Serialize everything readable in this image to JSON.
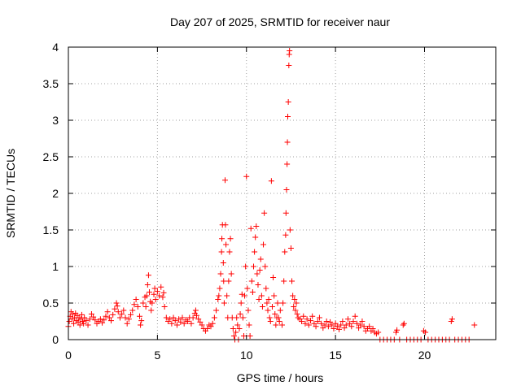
{
  "chart_data": {
    "type": "scatter",
    "title": "Day 207 of 2025, SRMTID for receiver naur",
    "xlabel": "GPS time / hours",
    "ylabel": "SRMTID / TECUs",
    "xlim": [
      0,
      24
    ],
    "ylim": [
      0,
      4
    ],
    "xticks": [
      0,
      5,
      10,
      15,
      20
    ],
    "xtick_labels": [
      "0",
      "5",
      "10",
      "15",
      "20"
    ],
    "yticks": [
      0,
      0.5,
      1,
      1.5,
      2,
      2.5,
      3,
      3.5,
      4
    ],
    "ytick_labels": [
      "0",
      "0.5",
      "1",
      "1.5",
      "2",
      "2.5",
      "3",
      "3.5",
      "4"
    ],
    "grid": true,
    "marker": "+",
    "color": "#ff0000",
    "series": [
      {
        "name": "SRMTID",
        "points": [
          [
            0.0,
            0.18
          ],
          [
            0.05,
            0.25
          ],
          [
            0.1,
            0.32
          ],
          [
            0.15,
            0.38
          ],
          [
            0.2,
            0.28
          ],
          [
            0.25,
            0.35
          ],
          [
            0.3,
            0.22
          ],
          [
            0.35,
            0.3
          ],
          [
            0.4,
            0.36
          ],
          [
            0.45,
            0.26
          ],
          [
            0.5,
            0.33
          ],
          [
            0.55,
            0.24
          ],
          [
            0.6,
            0.3
          ],
          [
            0.65,
            0.2
          ],
          [
            0.7,
            0.28
          ],
          [
            0.75,
            0.34
          ],
          [
            0.8,
            0.25
          ],
          [
            0.85,
            0.22
          ],
          [
            0.9,
            0.3
          ],
          [
            1.0,
            0.26
          ],
          [
            1.1,
            0.2
          ],
          [
            1.2,
            0.28
          ],
          [
            1.3,
            0.35
          ],
          [
            1.4,
            0.31
          ],
          [
            1.5,
            0.27
          ],
          [
            1.6,
            0.22
          ],
          [
            1.7,
            0.25
          ],
          [
            1.8,
            0.28
          ],
          [
            1.9,
            0.23
          ],
          [
            2.0,
            0.27
          ],
          [
            2.1,
            0.32
          ],
          [
            2.2,
            0.38
          ],
          [
            2.3,
            0.3
          ],
          [
            2.4,
            0.26
          ],
          [
            2.5,
            0.34
          ],
          [
            2.6,
            0.42
          ],
          [
            2.7,
            0.5
          ],
          [
            2.75,
            0.46
          ],
          [
            2.8,
            0.38
          ],
          [
            2.9,
            0.3
          ],
          [
            3.0,
            0.35
          ],
          [
            3.1,
            0.4
          ],
          [
            3.2,
            0.3
          ],
          [
            3.3,
            0.22
          ],
          [
            3.4,
            0.28
          ],
          [
            3.5,
            0.34
          ],
          [
            3.6,
            0.4
          ],
          [
            3.7,
            0.48
          ],
          [
            3.8,
            0.55
          ],
          [
            3.9,
            0.45
          ],
          [
            4.0,
            0.32
          ],
          [
            4.05,
            0.2
          ],
          [
            4.1,
            0.26
          ],
          [
            4.2,
            0.5
          ],
          [
            4.3,
            0.58
          ],
          [
            4.35,
            0.45
          ],
          [
            4.4,
            0.6
          ],
          [
            4.45,
            0.75
          ],
          [
            4.5,
            0.88
          ],
          [
            4.55,
            0.65
          ],
          [
            4.6,
            0.52
          ],
          [
            4.65,
            0.4
          ],
          [
            4.7,
            0.5
          ],
          [
            4.8,
            0.62
          ],
          [
            4.85,
            0.7
          ],
          [
            4.9,
            0.55
          ],
          [
            5.0,
            0.66
          ],
          [
            5.1,
            0.6
          ],
          [
            5.2,
            0.72
          ],
          [
            5.3,
            0.58
          ],
          [
            5.35,
            0.64
          ],
          [
            5.4,
            0.45
          ],
          [
            5.5,
            0.3
          ],
          [
            5.6,
            0.25
          ],
          [
            5.7,
            0.28
          ],
          [
            5.8,
            0.22
          ],
          [
            5.9,
            0.3
          ],
          [
            6.0,
            0.26
          ],
          [
            6.1,
            0.2
          ],
          [
            6.2,
            0.28
          ],
          [
            6.3,
            0.24
          ],
          [
            6.4,
            0.3
          ],
          [
            6.5,
            0.22
          ],
          [
            6.6,
            0.27
          ],
          [
            6.7,
            0.25
          ],
          [
            6.8,
            0.3
          ],
          [
            6.9,
            0.22
          ],
          [
            7.0,
            0.3
          ],
          [
            7.1,
            0.36
          ],
          [
            7.15,
            0.4
          ],
          [
            7.2,
            0.33
          ],
          [
            7.3,
            0.28
          ],
          [
            7.4,
            0.24
          ],
          [
            7.5,
            0.2
          ],
          [
            7.6,
            0.15
          ],
          [
            7.7,
            0.12
          ],
          [
            7.8,
            0.15
          ],
          [
            7.9,
            0.2
          ],
          [
            8.0,
            0.18
          ],
          [
            8.1,
            0.22
          ],
          [
            8.2,
            0.3
          ],
          [
            8.3,
            0.4
          ],
          [
            8.4,
            0.55
          ],
          [
            8.45,
            0.6
          ],
          [
            8.5,
            0.7
          ],
          [
            8.55,
            0.9
          ],
          [
            8.6,
            1.2
          ],
          [
            8.62,
            1.38
          ],
          [
            8.65,
            1.57
          ],
          [
            8.7,
            1.05
          ],
          [
            8.72,
            0.8
          ],
          [
            8.75,
            0.5
          ],
          [
            8.8,
            2.18
          ],
          [
            8.82,
            1.57
          ],
          [
            8.85,
            1.3
          ],
          [
            8.9,
            0.6
          ],
          [
            8.95,
            0.3
          ],
          [
            9.0,
            0.8
          ],
          [
            9.05,
            1.2
          ],
          [
            9.1,
            1.38
          ],
          [
            9.15,
            0.9
          ],
          [
            9.2,
            0.3
          ],
          [
            9.25,
            0.15
          ],
          [
            9.3,
            0.05
          ],
          [
            9.35,
            0.0
          ],
          [
            9.4,
            0.1
          ],
          [
            9.45,
            0.3
          ],
          [
            9.5,
            0.2
          ],
          [
            9.55,
            0.0
          ],
          [
            9.6,
            0.15
          ],
          [
            9.65,
            0.35
          ],
          [
            9.7,
            0.5
          ],
          [
            9.75,
            0.62
          ],
          [
            9.8,
            0.3
          ],
          [
            9.85,
            0.05
          ],
          [
            9.9,
            0.6
          ],
          [
            9.95,
            1.0
          ],
          [
            10.0,
            2.23
          ],
          [
            10.05,
            0.7
          ],
          [
            10.1,
            0.4
          ],
          [
            10.15,
            0.2
          ],
          [
            10.2,
            0.05
          ],
          [
            10.25,
            1.52
          ],
          [
            10.3,
            0.8
          ],
          [
            10.35,
            0.65
          ],
          [
            10.4,
            1.0
          ],
          [
            10.45,
            1.2
          ],
          [
            10.5,
            1.4
          ],
          [
            10.55,
            1.55
          ],
          [
            10.6,
            0.9
          ],
          [
            10.65,
            0.75
          ],
          [
            10.7,
            0.55
          ],
          [
            10.75,
            0.95
          ],
          [
            10.8,
            1.1
          ],
          [
            10.85,
            0.6
          ],
          [
            10.9,
            0.45
          ],
          [
            10.95,
            1.3
          ],
          [
            11.0,
            1.73
          ],
          [
            11.05,
            1.0
          ],
          [
            11.1,
            0.7
          ],
          [
            11.15,
            0.5
          ],
          [
            11.2,
            0.4
          ],
          [
            11.25,
            0.55
          ],
          [
            11.3,
            0.3
          ],
          [
            11.35,
            0.25
          ],
          [
            11.4,
            2.17
          ],
          [
            11.45,
            0.45
          ],
          [
            11.5,
            0.85
          ],
          [
            11.55,
            0.6
          ],
          [
            11.6,
            0.35
          ],
          [
            11.65,
            0.2
          ],
          [
            11.7,
            0.3
          ],
          [
            11.75,
            0.5
          ],
          [
            11.8,
            0.3
          ],
          [
            11.85,
            0.25
          ],
          [
            11.9,
            0.4
          ],
          [
            12.0,
            0.2
          ],
          [
            12.05,
            0.5
          ],
          [
            12.1,
            0.8
          ],
          [
            12.15,
            1.2
          ],
          [
            12.2,
            1.43
          ],
          [
            12.22,
            1.73
          ],
          [
            12.25,
            2.05
          ],
          [
            12.28,
            2.4
          ],
          [
            12.3,
            2.7
          ],
          [
            12.32,
            3.05
          ],
          [
            12.35,
            3.25
          ],
          [
            12.38,
            3.75
          ],
          [
            12.4,
            3.9
          ],
          [
            12.42,
            3.95
          ],
          [
            12.45,
            1.5
          ],
          [
            12.5,
            1.25
          ],
          [
            12.55,
            0.8
          ],
          [
            12.6,
            0.6
          ],
          [
            12.65,
            0.45
          ],
          [
            12.7,
            0.55
          ],
          [
            12.75,
            0.4
          ],
          [
            12.8,
            0.5
          ],
          [
            12.85,
            0.35
          ],
          [
            12.9,
            0.3
          ],
          [
            13.0,
            0.28
          ],
          [
            13.1,
            0.25
          ],
          [
            13.2,
            0.32
          ],
          [
            13.3,
            0.22
          ],
          [
            13.4,
            0.28
          ],
          [
            13.5,
            0.2
          ],
          [
            13.6,
            0.26
          ],
          [
            13.7,
            0.32
          ],
          [
            13.8,
            0.22
          ],
          [
            13.9,
            0.18
          ],
          [
            14.0,
            0.25
          ],
          [
            14.1,
            0.3
          ],
          [
            14.2,
            0.22
          ],
          [
            14.3,
            0.16
          ],
          [
            14.4,
            0.2
          ],
          [
            14.5,
            0.25
          ],
          [
            14.6,
            0.18
          ],
          [
            14.7,
            0.24
          ],
          [
            14.8,
            0.2
          ],
          [
            14.9,
            0.15
          ],
          [
            15.0,
            0.22
          ],
          [
            15.1,
            0.18
          ],
          [
            15.2,
            0.14
          ],
          [
            15.3,
            0.2
          ],
          [
            15.4,
            0.25
          ],
          [
            15.5,
            0.16
          ],
          [
            15.6,
            0.2
          ],
          [
            15.7,
            0.28
          ],
          [
            15.8,
            0.22
          ],
          [
            15.9,
            0.18
          ],
          [
            16.0,
            0.25
          ],
          [
            16.1,
            0.32
          ],
          [
            16.2,
            0.22
          ],
          [
            16.3,
            0.16
          ],
          [
            16.4,
            0.2
          ],
          [
            16.5,
            0.25
          ],
          [
            16.6,
            0.18
          ],
          [
            16.7,
            0.12
          ],
          [
            16.8,
            0.15
          ],
          [
            16.9,
            0.18
          ],
          [
            17.0,
            0.12
          ],
          [
            17.1,
            0.15
          ],
          [
            17.2,
            0.1
          ],
          [
            17.3,
            0.08
          ],
          [
            17.4,
            0.1
          ],
          [
            17.5,
            0.0
          ],
          [
            17.7,
            0.0
          ],
          [
            17.9,
            0.0
          ],
          [
            18.1,
            0.0
          ],
          [
            18.3,
            0.0
          ],
          [
            18.4,
            0.1
          ],
          [
            18.45,
            0.13
          ],
          [
            18.6,
            0.0
          ],
          [
            18.8,
            0.2
          ],
          [
            18.85,
            0.22
          ],
          [
            19.0,
            0.0
          ],
          [
            19.2,
            0.0
          ],
          [
            19.4,
            0.0
          ],
          [
            19.6,
            0.0
          ],
          [
            19.8,
            0.0
          ],
          [
            19.95,
            0.12
          ],
          [
            20.05,
            0.1
          ],
          [
            20.2,
            0.0
          ],
          [
            20.4,
            0.0
          ],
          [
            20.6,
            0.0
          ],
          [
            20.8,
            0.0
          ],
          [
            21.0,
            0.0
          ],
          [
            21.2,
            0.0
          ],
          [
            21.4,
            0.0
          ],
          [
            21.5,
            0.25
          ],
          [
            21.55,
            0.28
          ],
          [
            21.7,
            0.0
          ],
          [
            21.9,
            0.0
          ],
          [
            22.1,
            0.0
          ],
          [
            22.3,
            0.0
          ],
          [
            22.5,
            0.0
          ],
          [
            22.8,
            0.2
          ]
        ]
      }
    ]
  }
}
